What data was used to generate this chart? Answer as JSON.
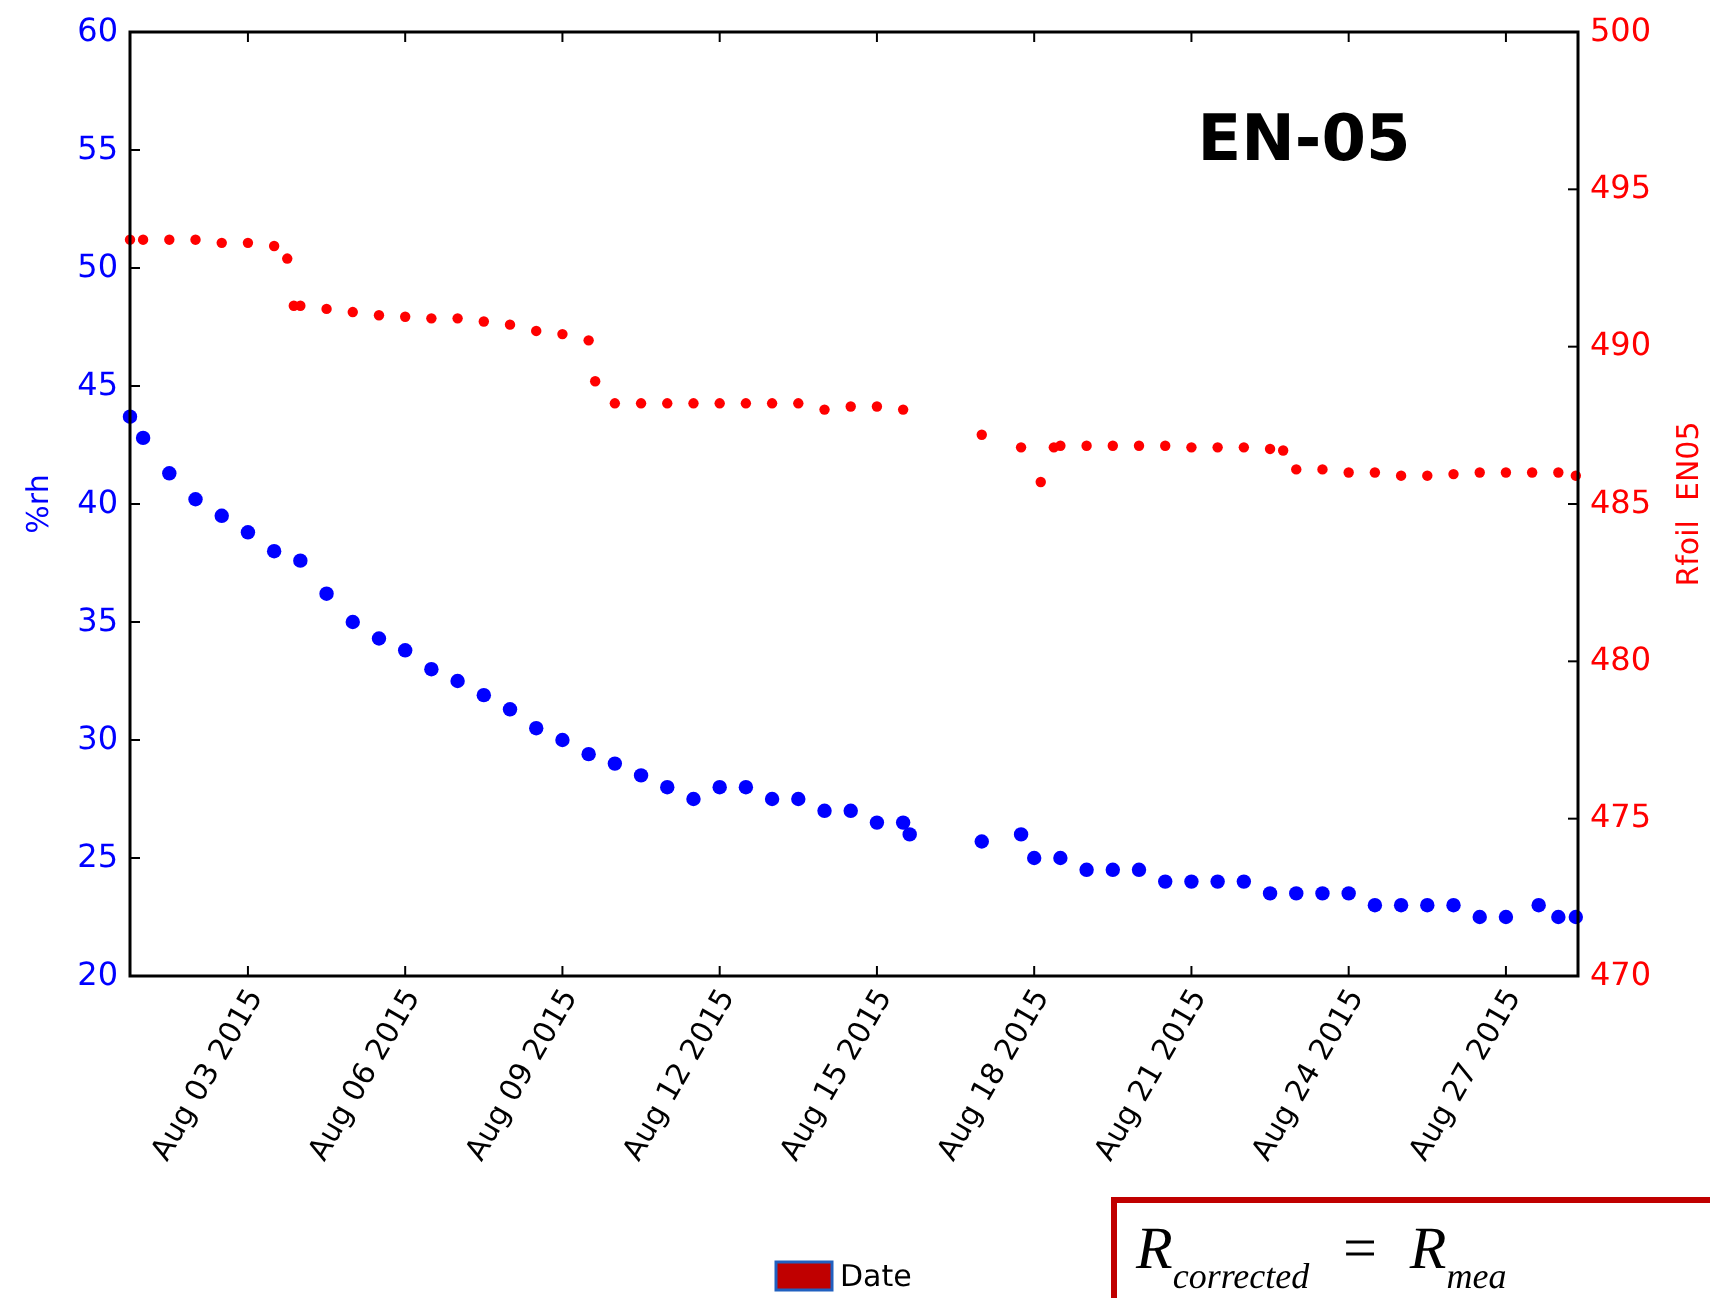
{
  "chart_data": {
    "type": "scatter",
    "title": "EN-05",
    "ylabel": "%rh",
    "y2label": "Rfoil  EN05",
    "xlim": [
      "2015-07-31T18:00",
      "2015-08-28T09:00"
    ],
    "xticks": [
      {
        "value": "2015-08-03",
        "label": "Aug 03 2015"
      },
      {
        "value": "2015-08-06",
        "label": "Aug 06 2015"
      },
      {
        "value": "2015-08-09",
        "label": "Aug 09 2015"
      },
      {
        "value": "2015-08-12",
        "label": "Aug 12 2015"
      },
      {
        "value": "2015-08-15",
        "label": "Aug 15 2015"
      },
      {
        "value": "2015-08-18",
        "label": "Aug 18 2015"
      },
      {
        "value": "2015-08-21",
        "label": "Aug 21 2015"
      },
      {
        "value": "2015-08-24",
        "label": "Aug 24 2015"
      },
      {
        "value": "2015-08-27",
        "label": "Aug 27 2015"
      }
    ],
    "ylim": [
      20,
      60
    ],
    "yticks": [
      20,
      25,
      30,
      35,
      40,
      45,
      50,
      55,
      60
    ],
    "y2lim": [
      470,
      500
    ],
    "y2ticks": [
      470,
      475,
      480,
      485,
      490,
      495,
      500
    ],
    "marker": "circle",
    "grid": false,
    "annotations": [
      "Date",
      "R$_{corrected}$  =  R$_{mea}$"
    ],
    "series": [
      {
        "color": "#0000ff",
        "x": [
          "2015-07-31T18:00",
          "2015-08-01T00:00",
          "2015-08-01T12:00",
          "2015-08-02T00:00",
          "2015-08-02T12:00",
          "2015-08-03T00:00",
          "2015-08-03T12:00",
          "2015-08-04T00:00",
          "2015-08-04T12:00",
          "2015-08-05T00:00",
          "2015-08-05T12:00",
          "2015-08-06T00:00",
          "2015-08-06T12:00",
          "2015-08-07T00:00",
          "2015-08-07T12:00",
          "2015-08-08T00:00",
          "2015-08-08T12:00",
          "2015-08-09T00:00",
          "2015-08-09T12:00",
          "2015-08-10T00:00",
          "2015-08-10T12:00",
          "2015-08-11T00:00",
          "2015-08-11T12:00",
          "2015-08-12T00:00",
          "2015-08-12T12:00",
          "2015-08-13T00:00",
          "2015-08-13T12:00",
          "2015-08-14T00:00",
          "2015-08-14T12:00",
          "2015-08-15T00:00",
          "2015-08-15T12:00",
          "2015-08-15T15:00",
          "2015-08-17T00:00",
          "2015-08-17T18:00",
          "2015-08-18T00:00",
          "2015-08-18T12:00",
          "2015-08-19T00:00",
          "2015-08-19T12:00",
          "2015-08-20T00:00",
          "2015-08-20T12:00",
          "2015-08-21T00:00",
          "2015-08-21T12:00",
          "2015-08-22T00:00",
          "2015-08-22T12:00",
          "2015-08-23T00:00",
          "2015-08-23T12:00",
          "2015-08-24T00:00",
          "2015-08-24T12:00",
          "2015-08-25T00:00",
          "2015-08-25T12:00",
          "2015-08-26T00:00",
          "2015-08-26T12:00",
          "2015-08-27T00:00",
          "2015-08-27T15:00",
          "2015-08-28T00:00",
          "2015-08-28T08:00"
        ],
        "values": [
          43.7,
          42.8,
          41.3,
          40.2,
          39.5,
          38.8,
          38.0,
          37.6,
          36.2,
          35.0,
          34.3,
          33.8,
          33.0,
          32.5,
          31.9,
          31.3,
          30.5,
          30.0,
          29.4,
          29.0,
          28.5,
          28.0,
          27.5,
          28.0,
          28.0,
          27.5,
          27.5,
          27.0,
          27.0,
          26.5,
          26.5,
          26.0,
          25.7,
          26.0,
          25.0,
          25.0,
          24.5,
          24.5,
          24.5,
          24.0,
          24.0,
          24.0,
          24.0,
          23.5,
          23.5,
          23.5,
          23.5,
          23.0,
          23.0,
          23.0,
          23.0,
          22.5,
          22.5,
          23.0,
          22.5,
          22.5
        ]
      },
      {
        "color": "#ff0000",
        "axis": "y2",
        "x": [
          "2015-07-31T18:00",
          "2015-08-01T00:00",
          "2015-08-01T12:00",
          "2015-08-02T00:00",
          "2015-08-02T12:00",
          "2015-08-03T00:00",
          "2015-08-03T12:00",
          "2015-08-03T18:00",
          "2015-08-03T21:00",
          "2015-08-04T00:00",
          "2015-08-04T12:00",
          "2015-08-05T00:00",
          "2015-08-05T12:00",
          "2015-08-06T00:00",
          "2015-08-06T12:00",
          "2015-08-07T00:00",
          "2015-08-07T12:00",
          "2015-08-08T00:00",
          "2015-08-08T12:00",
          "2015-08-09T00:00",
          "2015-08-09T12:00",
          "2015-08-09T15:00",
          "2015-08-10T00:00",
          "2015-08-10T12:00",
          "2015-08-11T00:00",
          "2015-08-11T12:00",
          "2015-08-12T00:00",
          "2015-08-12T12:00",
          "2015-08-13T00:00",
          "2015-08-13T12:00",
          "2015-08-14T00:00",
          "2015-08-14T12:00",
          "2015-08-15T00:00",
          "2015-08-15T12:00",
          "2015-08-17T00:00",
          "2015-08-17T18:00",
          "2015-08-18T03:00",
          "2015-08-18T09:00",
          "2015-08-18T12:00",
          "2015-08-19T00:00",
          "2015-08-19T12:00",
          "2015-08-20T00:00",
          "2015-08-20T12:00",
          "2015-08-21T00:00",
          "2015-08-21T12:00",
          "2015-08-22T00:00",
          "2015-08-22T12:00",
          "2015-08-22T18:00",
          "2015-08-23T00:00",
          "2015-08-23T12:00",
          "2015-08-24T00:00",
          "2015-08-24T12:00",
          "2015-08-25T00:00",
          "2015-08-25T12:00",
          "2015-08-26T00:00",
          "2015-08-26T12:00",
          "2015-08-27T00:00",
          "2015-08-27T12:00",
          "2015-08-28T00:00",
          "2015-08-28T08:00"
        ],
        "values": [
          493.4,
          493.4,
          493.4,
          493.4,
          493.3,
          493.3,
          493.2,
          492.8,
          491.3,
          491.3,
          491.2,
          491.1,
          491.0,
          490.95,
          490.9,
          490.9,
          490.8,
          490.7,
          490.5,
          490.4,
          490.2,
          488.9,
          488.2,
          488.2,
          488.2,
          488.2,
          488.2,
          488.2,
          488.2,
          488.2,
          488.0,
          488.1,
          488.1,
          488.0,
          487.2,
          486.8,
          485.7,
          486.8,
          486.85,
          486.85,
          486.85,
          486.85,
          486.85,
          486.8,
          486.8,
          486.8,
          486.75,
          486.7,
          486.1,
          486.1,
          486.0,
          486.0,
          485.9,
          485.9,
          485.95,
          486.0,
          486.0,
          486.0,
          486.0,
          485.9
        ]
      }
    ]
  }
}
